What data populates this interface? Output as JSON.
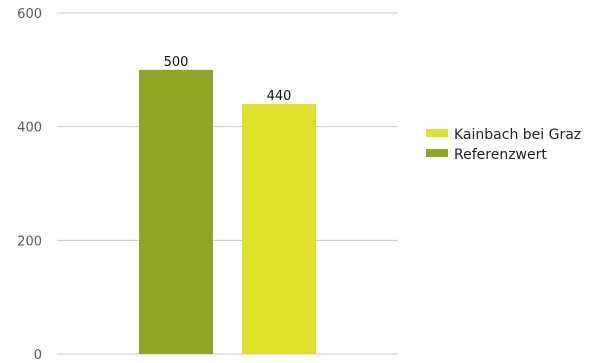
{
  "chart_data": {
    "type": "bar",
    "title": "",
    "xlabel": "",
    "ylabel": "",
    "ylim": [
      0,
      600
    ],
    "yticks": [
      0,
      200,
      400,
      600
    ],
    "grid": true,
    "legend_position": "right",
    "series": [
      {
        "name": "Referenzwert",
        "value": 500,
        "label": "500",
        "color": "#8fa523"
      },
      {
        "name": "Kainbach bei Graz",
        "value": 440,
        "label": "440",
        "color": "#dfe12a"
      }
    ],
    "legend": [
      {
        "name": "Kainbach bei Graz",
        "color": "#dfe12a"
      },
      {
        "name": "Referenzwert",
        "color": "#8fa523"
      }
    ]
  }
}
